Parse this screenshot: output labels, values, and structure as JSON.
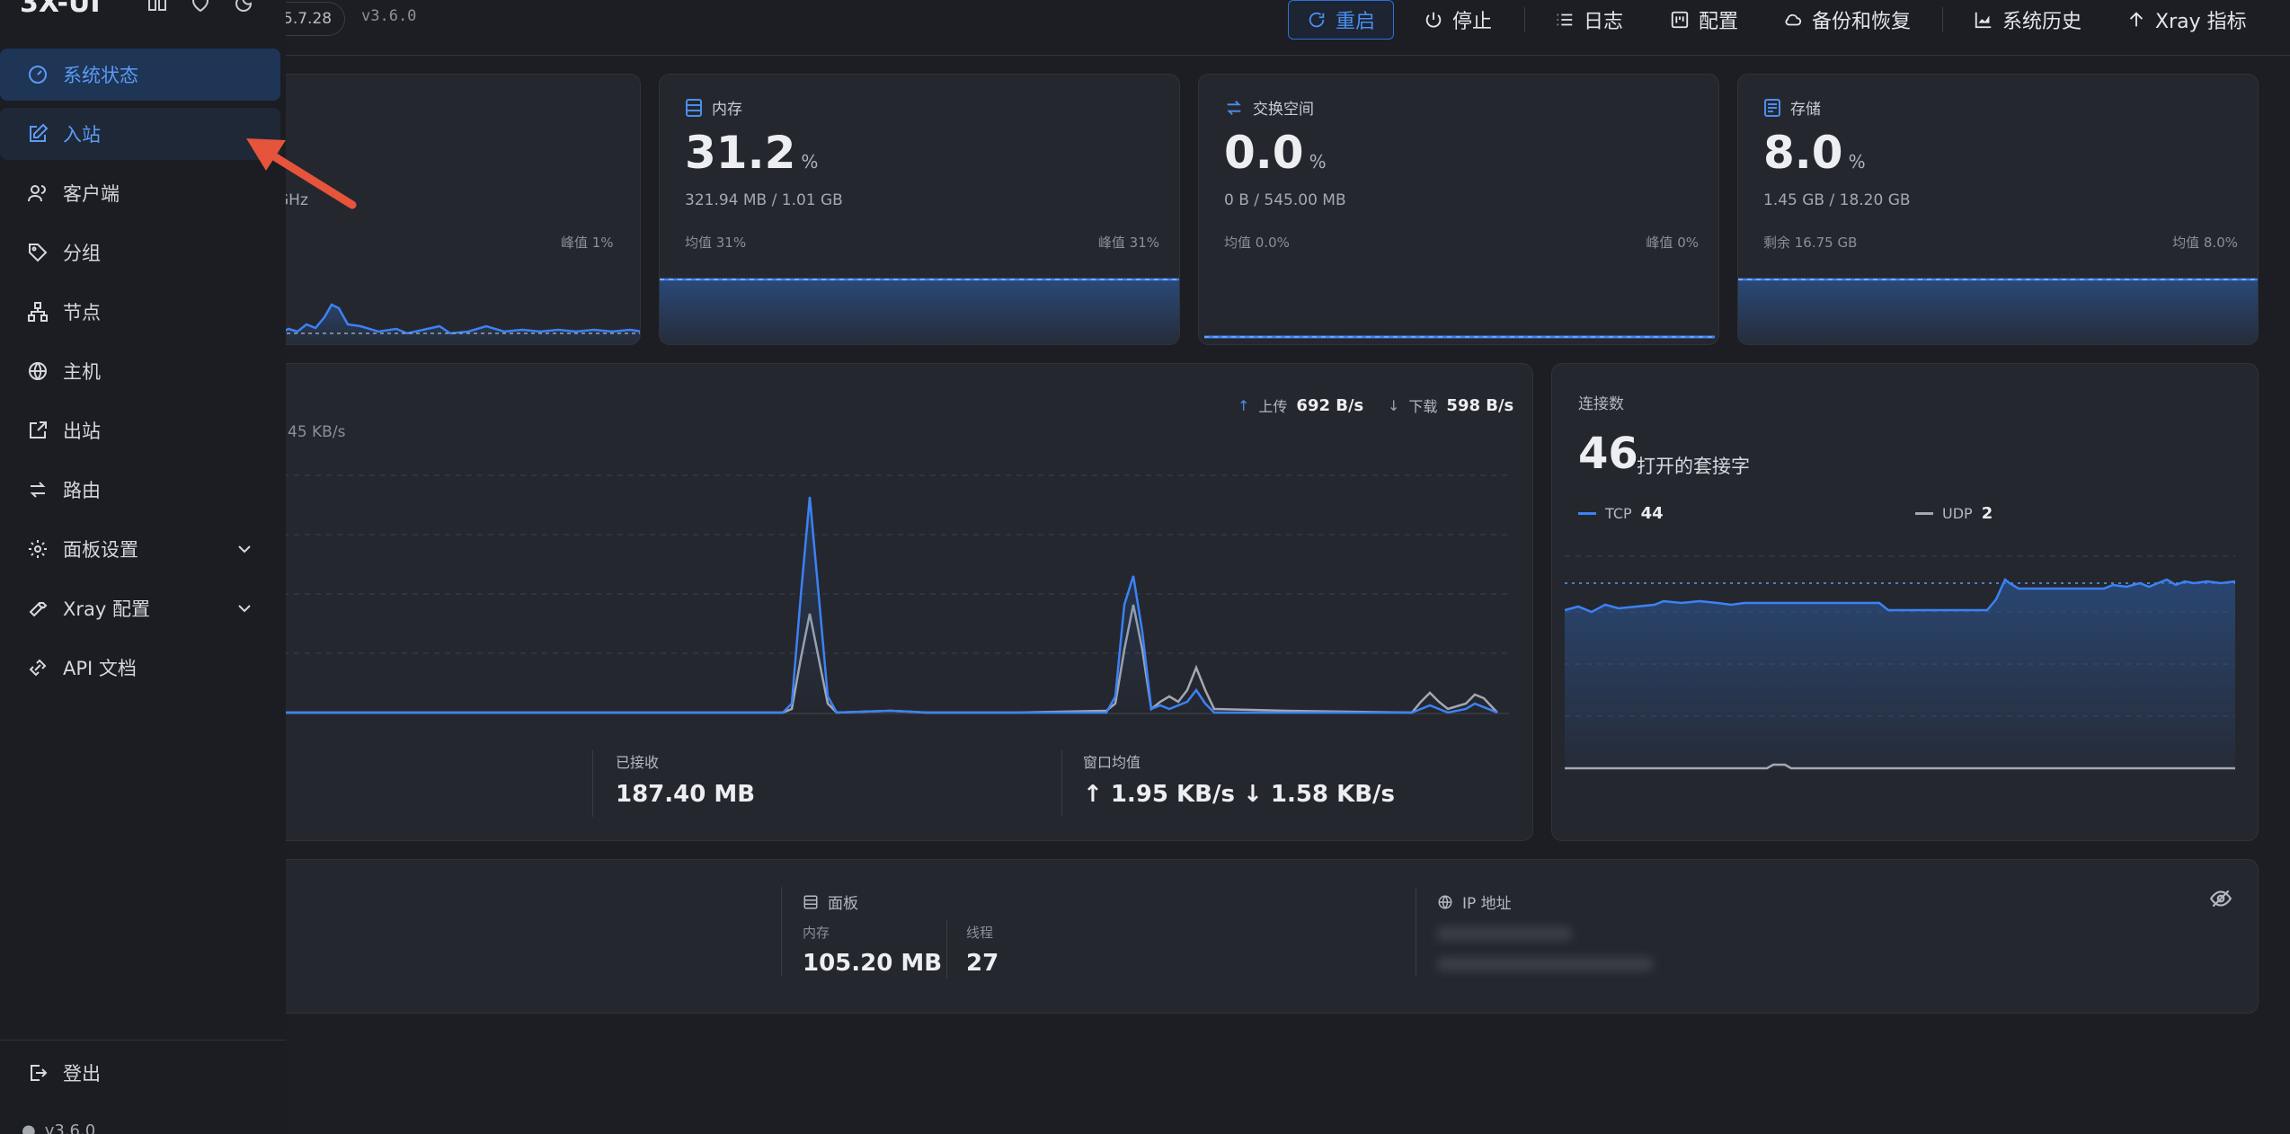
{
  "header": {
    "version_pill": "5.7.28",
    "version_text": "v3.6.0",
    "buttons": {
      "restart": "重启",
      "stop": "停止",
      "logs": "日志",
      "config": "配置",
      "backup": "备份和恢复",
      "history": "系统历史",
      "xray_metrics": "Xray 指标"
    }
  },
  "cpu_card": {
    "subtitle_fragment": "GHz",
    "peak": "峰值 1%"
  },
  "memory_card": {
    "title": "内存",
    "value": "31.2",
    "unit": "%",
    "detail": "321.94 MB / 1.01 GB",
    "avg": "均值 31%",
    "peak": "峰值 31%"
  },
  "swap_card": {
    "title": "交换空间",
    "value": "0.0",
    "unit": "%",
    "detail": "0 B / 545.00 MB",
    "avg": "均值 0.0%",
    "peak": "峰值 0%"
  },
  "storage_card": {
    "title": "存储",
    "value": "8.0",
    "unit": "%",
    "detail": "1.45 GB / 18.20 GB",
    "remaining": "剩余 16.75 GB",
    "avg": "均值 8.0%"
  },
  "traffic_card": {
    "axis_fragment": "45 KB/s",
    "upload_label": "上传",
    "upload_value": "692 B/s",
    "download_label": "下载",
    "download_value": "598 B/s",
    "received_label": "已接收",
    "received_value": "187.40 MB",
    "window_avg_label": "窗口均值",
    "window_avg_value": "↑ 1.95 KB/s ↓ 1.58 KB/s"
  },
  "connections_card": {
    "title": "连接数",
    "count": "46",
    "count_label": "打开的套接字",
    "tcp_label": "TCP",
    "tcp_value": "44",
    "udp_label": "UDP",
    "udp_value": "2"
  },
  "info_card": {
    "panel_title": "面板",
    "memory_label": "内存",
    "memory_value": "105.20 MB",
    "threads_label": "线程",
    "threads_value": "27",
    "ip_title": "IP 地址"
  },
  "sidebar": {
    "brand": "3X-UI",
    "items": [
      {
        "label": "系统状态"
      },
      {
        "label": "入站"
      },
      {
        "label": "客户端"
      },
      {
        "label": "分组"
      },
      {
        "label": "节点"
      },
      {
        "label": "主机"
      },
      {
        "label": "出站"
      },
      {
        "label": "路由"
      },
      {
        "label": "面板设置"
      },
      {
        "label": "Xray 配置"
      },
      {
        "label": "API 文档"
      }
    ],
    "logout": "登出",
    "footer_version": "v3.6.0"
  },
  "colors": {
    "accent": "#4a8ef0",
    "arrow": "#e5543b"
  }
}
